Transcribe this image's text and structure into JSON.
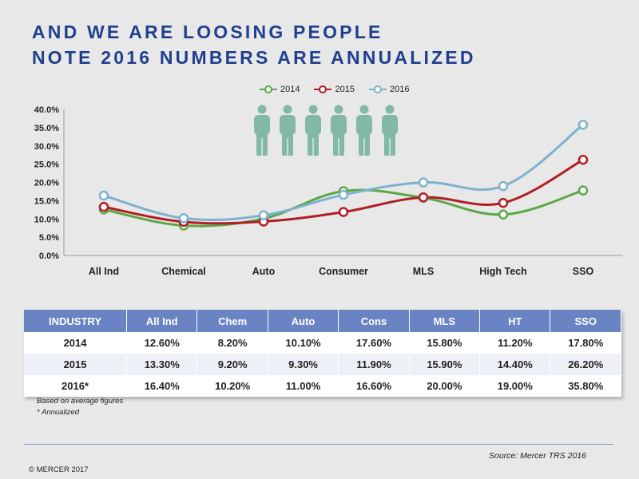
{
  "title": {
    "line1": "AND WE ARE LOOSING PEOPLE",
    "line2": "NOTE 2016 NUMBERS ARE ANNUALIZED"
  },
  "chart_data": {
    "type": "line",
    "categories": [
      "All Ind",
      "Chemical",
      "Auto",
      "Consumer",
      "MLS",
      "High Tech",
      "SSO"
    ],
    "series": [
      {
        "name": "2014",
        "color": "#5aa845",
        "values": [
          12.6,
          8.2,
          10.1,
          17.6,
          15.8,
          11.2,
          17.8
        ]
      },
      {
        "name": "2015",
        "color": "#b01f24",
        "values": [
          13.3,
          9.2,
          9.3,
          11.9,
          15.9,
          14.4,
          26.2
        ]
      },
      {
        "name": "2016",
        "color": "#7eb1cf",
        "values": [
          16.4,
          10.2,
          11.0,
          16.6,
          20.0,
          19.0,
          35.8
        ]
      }
    ],
    "ylim": [
      0,
      40
    ],
    "yticks": [
      "0.0%",
      "5.0%",
      "10.0%",
      "15.0%",
      "20.0%",
      "25.0%",
      "30.0%",
      "35.0%",
      "40.0%"
    ],
    "ytick_values": [
      0,
      5,
      10,
      15,
      20,
      25,
      30,
      35,
      40
    ],
    "legend_position": "top-center",
    "people_icon_color": "#82b8a8",
    "people_count": 6
  },
  "table": {
    "headers": [
      "INDUSTRY",
      "All Ind",
      "Chem",
      "Auto",
      "Cons",
      "MLS",
      "HT",
      "SSO"
    ],
    "rows": [
      [
        "2014",
        "12.60%",
        "8.20%",
        "10.10%",
        "17.60%",
        "15.80%",
        "11.20%",
        "17.80%"
      ],
      [
        "2015",
        "13.30%",
        "9.20%",
        "9.30%",
        "11.90%",
        "15.90%",
        "14.40%",
        "26.20%"
      ],
      [
        "2016*",
        "16.40%",
        "10.20%",
        "11.00%",
        "16.60%",
        "20.00%",
        "19.00%",
        "35.80%"
      ]
    ]
  },
  "notes": {
    "line1": "Based on average figures",
    "line2": "* Annualized"
  },
  "source": "Source: Mercer  TRS 2016",
  "copyright": "© MERCER 2017"
}
